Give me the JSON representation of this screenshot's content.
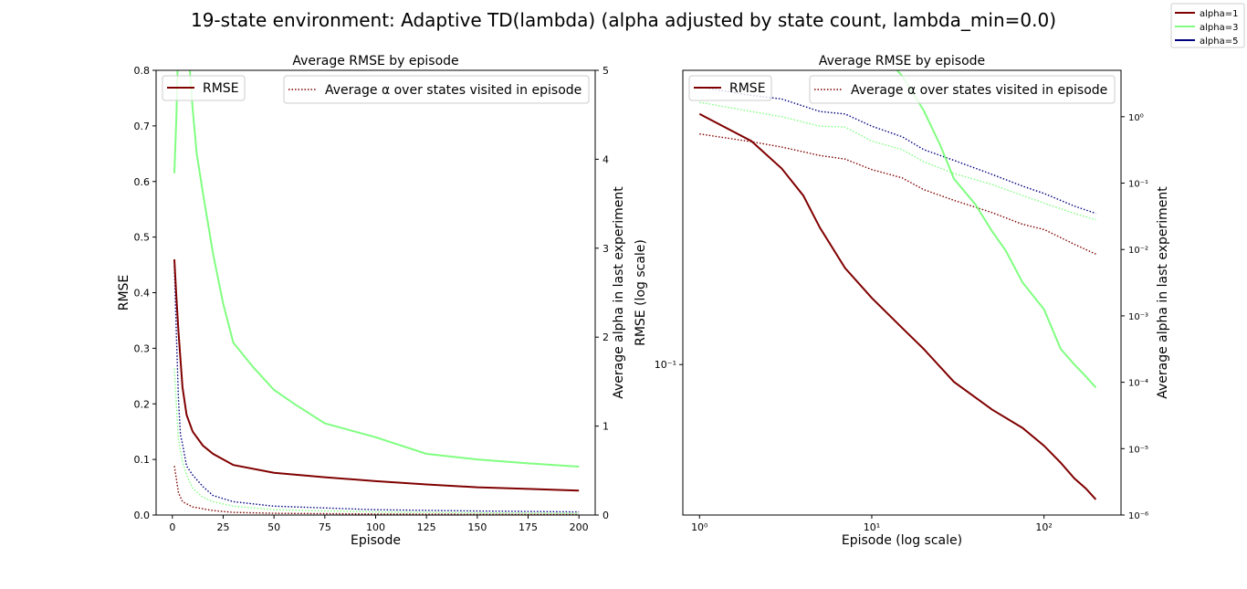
{
  "figure": {
    "suptitle": "19-state environment: Adaptive TD(lambda) (alpha adjusted by state count, lambda_min=0.0)",
    "legend": [
      {
        "label": "alpha=1",
        "color": "#800000"
      },
      {
        "label": "alpha=3",
        "color": "#80ff80"
      },
      {
        "label": "alpha=5",
        "color": "#000080"
      }
    ]
  },
  "chart_data": [
    {
      "type": "line",
      "title": "Average RMSE by episode",
      "xlabel": "Episode",
      "ylabel": "RMSE",
      "y2label": "Average alpha in last experiment",
      "xlim": [
        -8,
        208
      ],
      "ylim": [
        0,
        0.8
      ],
      "y2lim": [
        0,
        5
      ],
      "xticks": [
        0,
        25,
        50,
        75,
        100,
        125,
        150,
        175,
        200
      ],
      "yticks": [
        0.0,
        0.1,
        0.2,
        0.3,
        0.4,
        0.5,
        0.6,
        0.7,
        0.8
      ],
      "y2ticks": [
        0,
        1,
        2,
        3,
        4,
        5
      ],
      "legend_left": {
        "label": "RMSE",
        "placement": "upper-left"
      },
      "legend_right": {
        "label": "Average α over states visited in episode",
        "placement": "upper-right"
      },
      "rmse_series": [
        {
          "name": "alpha=1",
          "color": "#800000",
          "x": [
            1,
            2,
            3,
            4,
            5,
            7,
            10,
            15,
            20,
            30,
            50,
            75,
            100,
            125,
            150,
            175,
            200
          ],
          "y": [
            0.46,
            0.39,
            0.33,
            0.28,
            0.23,
            0.18,
            0.15,
            0.125,
            0.11,
            0.09,
            0.076,
            0.068,
            0.061,
            0.055,
            0.05,
            0.047,
            0.044
          ]
        },
        {
          "name": "alpha=3",
          "color": "#80ff80",
          "x": [
            1,
            2,
            3,
            5,
            8,
            10,
            12,
            15,
            20,
            25,
            30,
            40,
            50,
            60,
            75,
            100,
            125,
            150,
            175,
            200
          ],
          "y": [
            0.615,
            0.72,
            0.87,
            0.97,
            0.83,
            0.73,
            0.65,
            0.58,
            0.47,
            0.38,
            0.31,
            0.265,
            0.225,
            0.2,
            0.165,
            0.14,
            0.11,
            0.1,
            0.093,
            0.087
          ]
        },
        {
          "name": "alpha=5",
          "color": "#000080",
          "x": [],
          "y": []
        }
      ],
      "alpha_series": [
        {
          "name": "alpha=1",
          "color": "#800000",
          "x": [
            1,
            2,
            3,
            5,
            10,
            20,
            30,
            50,
            100,
            150,
            200
          ],
          "y": [
            0.55,
            0.4,
            0.25,
            0.15,
            0.09,
            0.05,
            0.03,
            0.02,
            0.011,
            0.008,
            0.006
          ]
        },
        {
          "name": "alpha=3",
          "color": "#80ff80",
          "x": [
            1,
            2,
            3,
            5,
            7,
            10,
            15,
            20,
            30,
            50,
            100,
            150,
            200
          ],
          "y": [
            1.65,
            1.2,
            0.85,
            0.6,
            0.45,
            0.3,
            0.2,
            0.15,
            0.1,
            0.06,
            0.035,
            0.025,
            0.018
          ]
        },
        {
          "name": "alpha=5",
          "color": "#000080",
          "x": [
            1,
            2,
            3,
            4,
            5,
            7,
            10,
            15,
            20,
            30,
            50,
            100,
            150,
            200
          ],
          "y": [
            2.8,
            2.0,
            1.3,
            0.9,
            0.8,
            0.55,
            0.45,
            0.32,
            0.22,
            0.15,
            0.1,
            0.06,
            0.045,
            0.035
          ]
        }
      ]
    },
    {
      "type": "line",
      "title": "Average RMSE by episode",
      "xlabel": "Episode (log scale)",
      "ylabel": "RMSE (log scale)",
      "y2label": "Average alpha in last experiment",
      "xscale": "log",
      "yscale": "log",
      "y2scale": "log",
      "xlim": [
        0.8,
        280
      ],
      "ylim": [
        0.04,
        0.6
      ],
      "y2lim": [
        1e-06,
        5
      ],
      "xticks": [
        1,
        10,
        100
      ],
      "xticklabels": [
        "10⁰",
        "10¹",
        "10²"
      ],
      "yticks": [
        0.1
      ],
      "yticklabels": [
        "10⁻¹"
      ],
      "y2ticks": [
        1e-06,
        1e-05,
        0.0001,
        0.001,
        0.01,
        0.1,
        1
      ],
      "y2ticklabels": [
        "10⁻⁶",
        "10⁻⁵",
        "10⁻⁴",
        "10⁻³",
        "10⁻²",
        "10⁻¹",
        "10⁰"
      ],
      "legend_left": {
        "label": "RMSE",
        "placement": "upper-left"
      },
      "legend_right": {
        "label": "Average α over states visited in episode",
        "placement": "upper-right"
      },
      "rmse_series": [
        {
          "name": "alpha=1",
          "color": "#800000",
          "x": [
            1,
            2,
            3,
            4,
            5,
            7,
            10,
            15,
            20,
            30,
            50,
            75,
            100,
            125,
            150,
            175,
            200
          ],
          "y": [
            0.46,
            0.39,
            0.33,
            0.28,
            0.23,
            0.18,
            0.15,
            0.125,
            0.11,
            0.09,
            0.076,
            0.068,
            0.061,
            0.055,
            0.05,
            0.047,
            0.044
          ]
        },
        {
          "name": "alpha=3",
          "color": "#80ff80",
          "x": [
            1,
            2,
            3,
            5,
            8,
            10,
            12,
            15,
            20,
            25,
            30,
            40,
            50,
            60,
            75,
            100,
            125,
            150,
            175,
            200
          ],
          "y": [
            0.615,
            0.72,
            0.87,
            0.97,
            0.83,
            0.73,
            0.65,
            0.58,
            0.47,
            0.38,
            0.31,
            0.265,
            0.225,
            0.2,
            0.165,
            0.14,
            0.11,
            0.1,
            0.093,
            0.087
          ]
        },
        {
          "name": "alpha=5",
          "color": "#000080",
          "x": [],
          "y": []
        }
      ],
      "alpha_series": [
        {
          "name": "alpha=1",
          "color": "#800000",
          "x": [
            1,
            2,
            3,
            5,
            7,
            10,
            15,
            20,
            30,
            50,
            75,
            100,
            150,
            200
          ],
          "y": [
            0.55,
            0.42,
            0.35,
            0.26,
            0.23,
            0.16,
            0.12,
            0.08,
            0.055,
            0.036,
            0.024,
            0.02,
            0.012,
            0.0085
          ]
        },
        {
          "name": "alpha=3",
          "color": "#80ff80",
          "x": [
            1,
            2,
            3,
            5,
            7,
            10,
            15,
            20,
            30,
            50,
            75,
            100,
            150,
            200
          ],
          "y": [
            1.65,
            1.2,
            1.0,
            0.72,
            0.7,
            0.43,
            0.32,
            0.21,
            0.14,
            0.095,
            0.065,
            0.05,
            0.035,
            0.028
          ]
        },
        {
          "name": "alpha=5",
          "color": "#000080",
          "x": [
            1,
            2,
            3,
            5,
            7,
            10,
            15,
            20,
            30,
            50,
            75,
            100,
            150,
            200
          ],
          "y": [
            2.8,
            2.1,
            1.85,
            1.2,
            1.1,
            0.72,
            0.5,
            0.32,
            0.22,
            0.135,
            0.09,
            0.07,
            0.045,
            0.035
          ]
        }
      ]
    }
  ]
}
